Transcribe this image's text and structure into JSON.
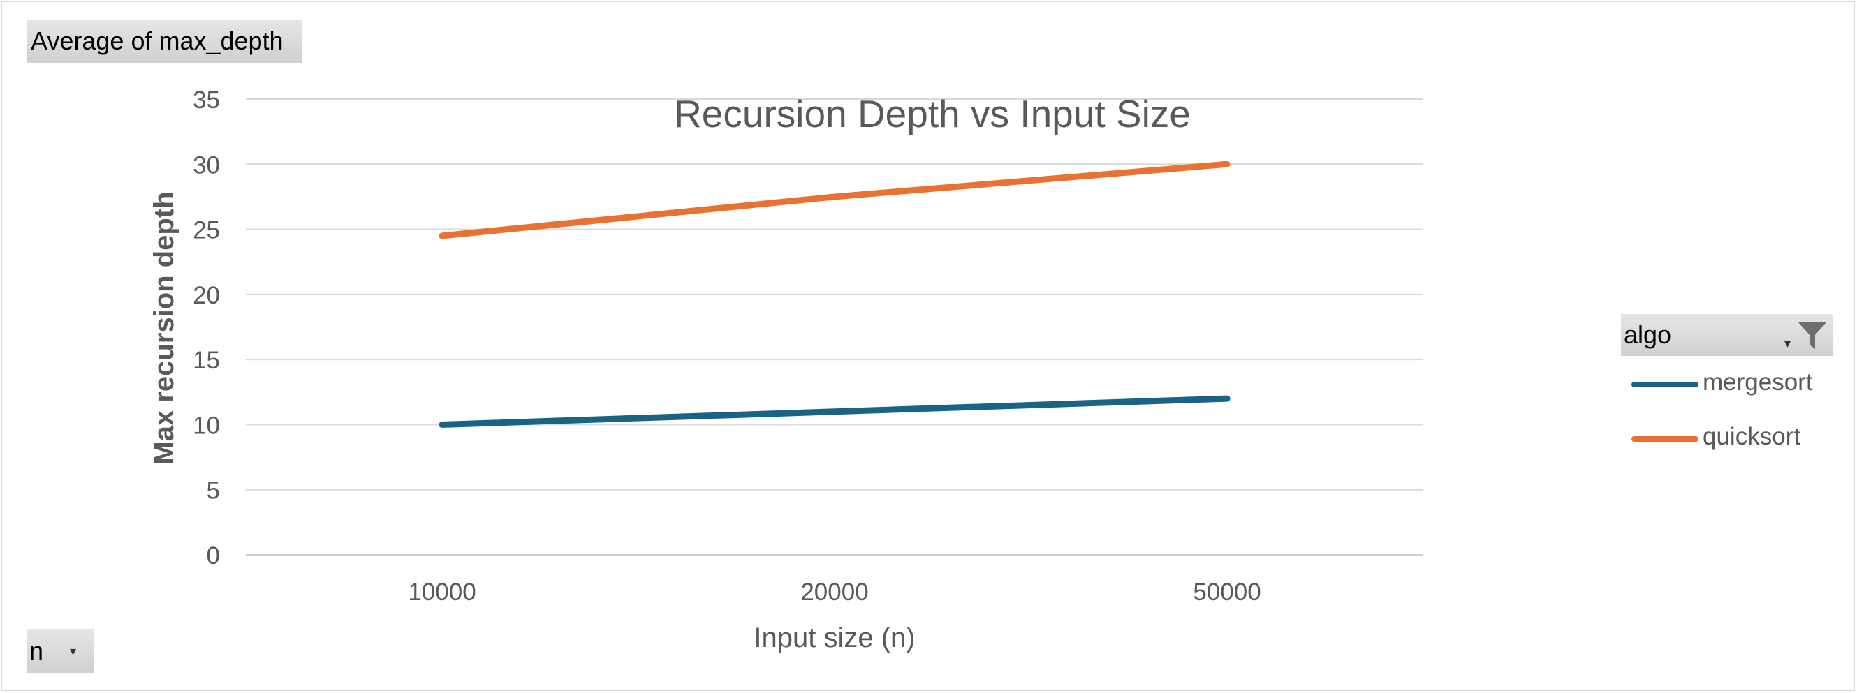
{
  "pivot": {
    "values_field": "Average  of max_depth",
    "axis_field": "n",
    "legend_field": "algo"
  },
  "icons": {
    "legend_filter": "filter-funnel-icon",
    "dropdown": "dropdown-caret-icon"
  },
  "chart_data": {
    "type": "line",
    "title": "Recursion Depth vs Input Size",
    "xlabel": "Input size (n)",
    "ylabel": "Max recursion depth",
    "categories": [
      "10000",
      "20000",
      "50000"
    ],
    "ylim": [
      0,
      35
    ],
    "yticks": [
      0,
      5,
      10,
      15,
      20,
      25,
      30,
      35
    ],
    "grid": true,
    "legend_position": "right",
    "series": [
      {
        "name": "mergesort",
        "color": "#1a6384",
        "values": [
          10,
          11,
          12
        ]
      },
      {
        "name": "quicksort",
        "color": "#e97132",
        "values": [
          24.5,
          27.5,
          30
        ]
      }
    ]
  }
}
